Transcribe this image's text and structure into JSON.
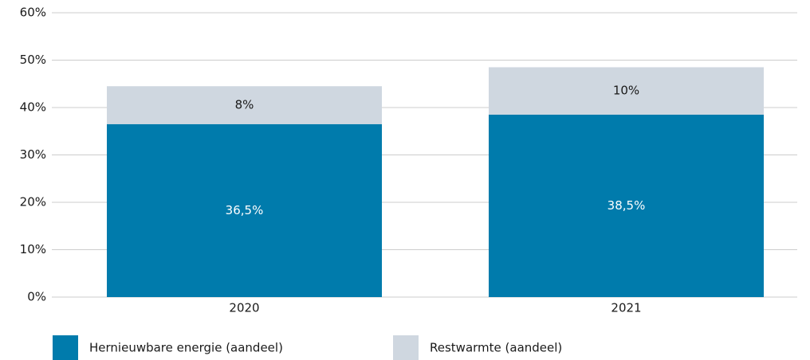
{
  "chart_data": {
    "type": "stacked_bar",
    "categories": [
      "2020",
      "2021"
    ],
    "series": [
      {
        "name": "Hernieuwbare energie (aandeel)",
        "color": "#007bac",
        "values": [
          36.5,
          38.5
        ],
        "value_labels": [
          "36,5%",
          "38,5%"
        ],
        "label_color": "#ffffff"
      },
      {
        "name": "Restwarmte (aandeel)",
        "color": "#cfd7e0",
        "values": [
          8,
          10
        ],
        "value_labels": [
          "8%",
          "10%"
        ],
        "label_color": "#1a1a1a"
      }
    ],
    "ylim": [
      0,
      60
    ],
    "yticks": [
      {
        "value": 0,
        "label": "0%"
      },
      {
        "value": 10,
        "label": "10%"
      },
      {
        "value": 20,
        "label": "20%"
      },
      {
        "value": 30,
        "label": "30%"
      },
      {
        "value": 40,
        "label": "40%"
      },
      {
        "value": 50,
        "label": "50%"
      },
      {
        "value": 60,
        "label": "60%"
      }
    ],
    "grid": true,
    "legend": "bottom"
  }
}
